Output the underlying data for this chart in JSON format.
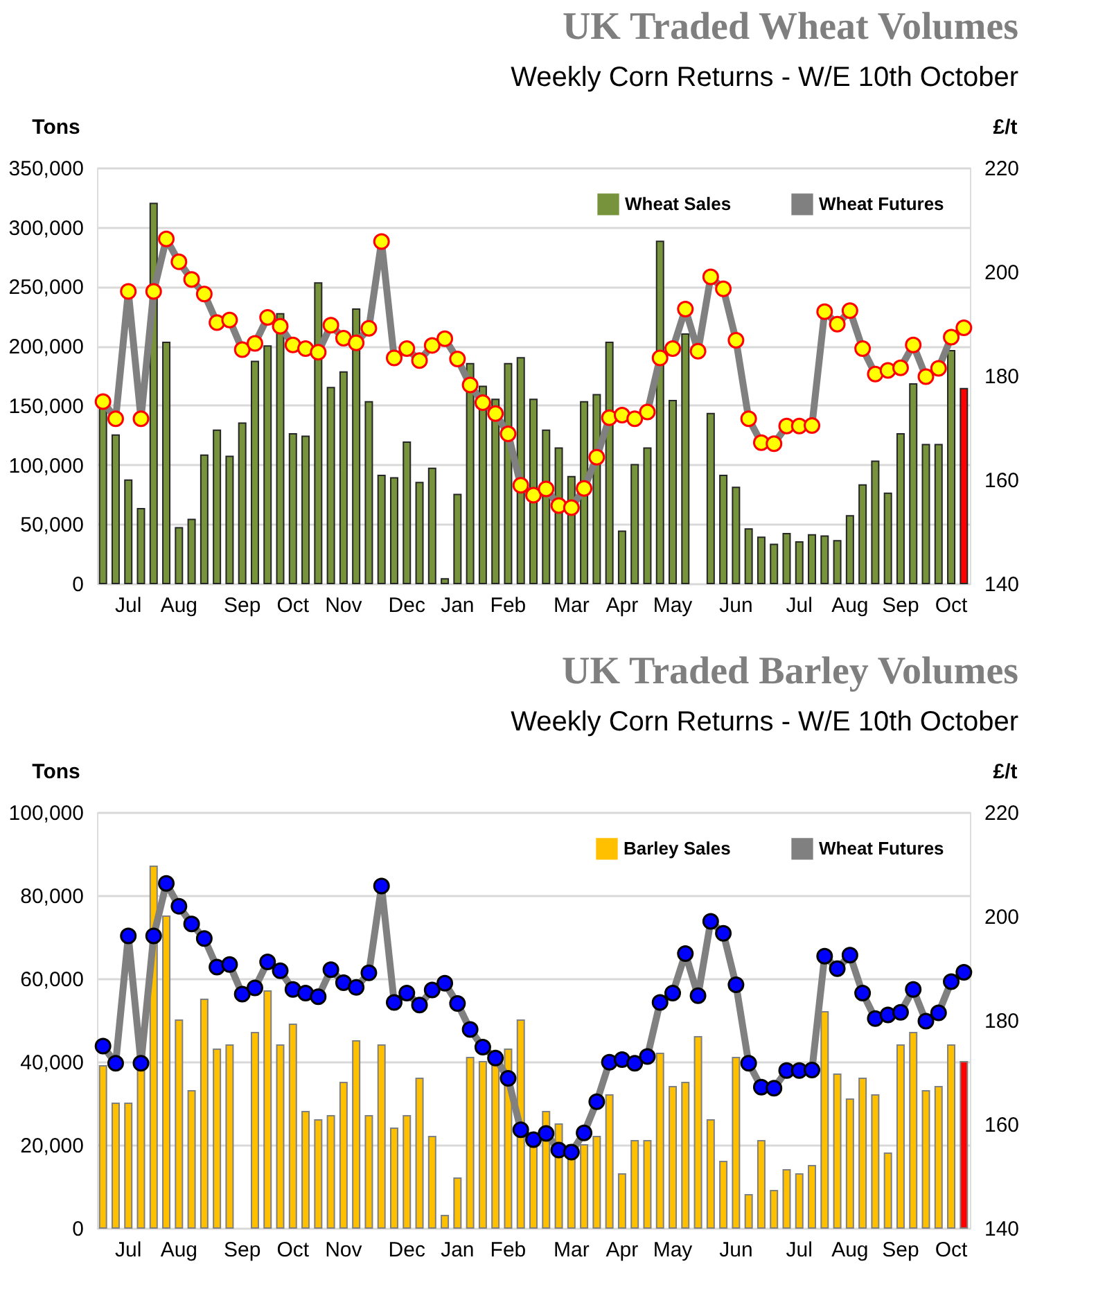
{
  "chart_data": [
    {
      "type": "bar",
      "title": "UK Traded Wheat Volumes",
      "subtitle": "Weekly Corn Returns - W/E 10th October",
      "ylabel": "Tons",
      "y2label": "£/t",
      "categories": [
        null,
        null,
        "Jul",
        null,
        null,
        null,
        "Aug",
        null,
        null,
        null,
        null,
        "Sep",
        null,
        null,
        null,
        "Oct",
        null,
        null,
        null,
        "Nov",
        null,
        null,
        null,
        null,
        "Dec",
        null,
        null,
        null,
        "Jan",
        null,
        null,
        null,
        "Feb",
        null,
        null,
        null,
        null,
        "Mar",
        null,
        null,
        null,
        "Apr",
        null,
        null,
        null,
        "May",
        null,
        null,
        null,
        null,
        "Jun",
        null,
        null,
        null,
        null,
        "Jul",
        null,
        null,
        null,
        "Aug",
        null,
        null,
        null,
        "Sep",
        null,
        null,
        null,
        "Oct",
        null
      ],
      "series": [
        {
          "name": "Wheat Sales",
          "type": "bar",
          "color": "#77933c",
          "colors": [
            "#77933c",
            "#77933c",
            "#77933c",
            "#77933c",
            "#77933c",
            "#77933c",
            "#77933c",
            "#77933c",
            "#77933c",
            "#77933c",
            "#77933c",
            "#77933c",
            "#77933c",
            "#77933c",
            "#77933c",
            "#77933c",
            "#77933c",
            "#77933c",
            "#77933c",
            "#77933c",
            "#77933c",
            "#77933c",
            "#77933c",
            "#77933c",
            "#77933c",
            "#77933c",
            "#77933c",
            "#77933c",
            "#77933c",
            "#77933c",
            "#77933c",
            "#77933c",
            "#77933c",
            "#77933c",
            "#77933c",
            "#77933c",
            "#77933c",
            "#77933c",
            "#77933c",
            "#77933c",
            "#77933c",
            "#77933c",
            "#77933c",
            "#77933c",
            "#77933c",
            "#77933c",
            "#77933c",
            "#77933c",
            "#77933c",
            "#77933c",
            "#77933c",
            "#77933c",
            "#77933c",
            "#77933c",
            "#77933c",
            "#77933c",
            "#77933c",
            "#77933c",
            "#77933c",
            "#77933c",
            "#77933c",
            "#77933c",
            "#77933c",
            "#77933c",
            "#77933c",
            "#77933c",
            "#77933c",
            "#77933c",
            "#ff0000"
          ],
          "values": [
            150000,
            125000,
            87000,
            63000,
            320000,
            203000,
            47000,
            54000,
            108000,
            129000,
            107000,
            135000,
            187000,
            200000,
            227000,
            126000,
            124000,
            253000,
            165000,
            178000,
            231000,
            153000,
            91000,
            89000,
            119000,
            85000,
            97000,
            4000,
            75000,
            185000,
            166000,
            155000,
            185000,
            190000,
            155000,
            129000,
            114000,
            90000,
            153000,
            159000,
            203000,
            44000,
            100000,
            114000,
            288000,
            154000,
            210000,
            null,
            143000,
            91000,
            81000,
            46000,
            39000,
            33000,
            42000,
            35000,
            41000,
            40000,
            36000,
            57000,
            83000,
            103000,
            76000,
            126000,
            168000,
            117000,
            117000,
            196000,
            164000
          ]
        },
        {
          "name": "Wheat Futures",
          "type": "line",
          "axis": "y2",
          "color": "#808080",
          "values": [
            175.0,
            171.7,
            196.2,
            171.7,
            196.2,
            206.3,
            201.9,
            198.5,
            195.7,
            190.2,
            190.7,
            185.0,
            186.2,
            191.2,
            189.5,
            185.9,
            185.2,
            184.5,
            189.7,
            187.2,
            186.3,
            189.1,
            205.8,
            183.4,
            185.2,
            182.9,
            185.8,
            187.1,
            183.2,
            178.2,
            174.8,
            172.7,
            168.8,
            158.9,
            157.0,
            158.2,
            155.0,
            154.6,
            158.3,
            164.3,
            171.9,
            172.4,
            171.7,
            173.0,
            183.4,
            185.2,
            192.8,
            184.7,
            199.0,
            196.7,
            186.8,
            171.7,
            167.1,
            166.9,
            170.3,
            170.3,
            170.4,
            192.3,
            189.9,
            192.5,
            185.2,
            180.3,
            181.0,
            181.5,
            185.9,
            179.8,
            181.4,
            187.4,
            189.2
          ]
        }
      ],
      "ylim": [
        0,
        350000
      ],
      "yticks": [
        0,
        {
          "value": 50000,
          "label": "50,000"
        },
        {
          "value": 100000,
          "label": "100,000"
        },
        {
          "value": 150000,
          "label": "150,000"
        },
        {
          "value": 200000,
          "label": "200,000"
        },
        {
          "value": 250000,
          "label": "250,000"
        },
        {
          "value": 300000,
          "label": "300,000"
        },
        {
          "value": 350000,
          "label": "350,000"
        }
      ],
      "y2lim": [
        140,
        220
      ],
      "y2ticks": [
        140,
        160,
        180,
        200,
        220
      ],
      "grid": "y",
      "legend": "top right",
      "marker": "circle"
    },
    {
      "type": "bar",
      "title": "UK Traded Barley Volumes",
      "subtitle": "Weekly Corn Returns - W/E 10th October",
      "ylabel": "Tons",
      "y2label": "£/t",
      "categories": [
        null,
        null,
        "Jul",
        null,
        null,
        null,
        "Aug",
        null,
        null,
        null,
        null,
        "Sep",
        null,
        null,
        null,
        "Oct",
        null,
        null,
        null,
        "Nov",
        null,
        null,
        null,
        null,
        "Dec",
        null,
        null,
        null,
        "Jan",
        null,
        null,
        null,
        "Feb",
        null,
        null,
        null,
        null,
        "Mar",
        null,
        null,
        null,
        "Apr",
        null,
        null,
        null,
        "May",
        null,
        null,
        null,
        null,
        "Jun",
        null,
        null,
        null,
        null,
        "Jul",
        null,
        null,
        null,
        "Aug",
        null,
        null,
        null,
        "Sep",
        null,
        null,
        null,
        "Oct",
        null
      ],
      "series": [
        {
          "name": "Barley Sales",
          "type": "bar",
          "color": "#ffc000",
          "colors": [
            "#ffc000",
            "#ffc000",
            "#ffc000",
            "#ffc000",
            "#ffc000",
            "#ffc000",
            "#ffc000",
            "#ffc000",
            "#ffc000",
            "#ffc000",
            "#ffc000",
            "#ffc000",
            "#ffc000",
            "#ffc000",
            "#ffc000",
            "#ffc000",
            "#ffc000",
            "#ffc000",
            "#ffc000",
            "#ffc000",
            "#ffc000",
            "#ffc000",
            "#ffc000",
            "#ffc000",
            "#ffc000",
            "#ffc000",
            "#ffc000",
            "#ffc000",
            "#ffc000",
            "#ffc000",
            "#ffc000",
            "#ffc000",
            "#ffc000",
            "#ffc000",
            "#ffc000",
            "#ffc000",
            "#ffc000",
            "#ffc000",
            "#ffc000",
            "#ffc000",
            "#ffc000",
            "#ffc000",
            "#ffc000",
            "#ffc000",
            "#ffc000",
            "#ffc000",
            "#ffc000",
            "#ffc000",
            "#ffc000",
            "#ffc000",
            "#ffc000",
            "#ffc000",
            "#ffc000",
            "#ffc000",
            "#ffc000",
            "#ffc000",
            "#ffc000",
            "#ffc000",
            "#ffc000",
            "#ffc000",
            "#ffc000",
            "#ffc000",
            "#ffc000",
            "#ffc000",
            "#ffc000",
            "#ffc000",
            "#ffc000",
            "#ffc000",
            "#ff0000"
          ],
          "values": [
            39000,
            30000,
            30000,
            42000,
            87000,
            75000,
            50000,
            33000,
            55000,
            43000,
            44000,
            null,
            47000,
            57000,
            44000,
            49000,
            28000,
            26000,
            27000,
            35000,
            45000,
            27000,
            44000,
            24000,
            27000,
            36000,
            22000,
            3000,
            12000,
            41000,
            40000,
            40000,
            43000,
            50000,
            20000,
            28000,
            25000,
            20000,
            20000,
            22000,
            32000,
            13000,
            21000,
            21000,
            42000,
            34000,
            35000,
            46000,
            26000,
            16000,
            41000,
            8000,
            21000,
            9000,
            14000,
            13000,
            15000,
            52000,
            37000,
            31000,
            36000,
            32000,
            18000,
            44000,
            47000,
            33000,
            34000,
            44000,
            40000
          ]
        },
        {
          "name": "Wheat Futures",
          "type": "line",
          "axis": "y2",
          "color": "#808080",
          "values": [
            175.0,
            171.7,
            196.2,
            171.7,
            196.2,
            206.3,
            201.9,
            198.5,
            195.7,
            190.2,
            190.7,
            185.0,
            186.2,
            191.2,
            189.5,
            185.9,
            185.2,
            184.5,
            189.7,
            187.2,
            186.3,
            189.1,
            205.8,
            183.4,
            185.2,
            182.9,
            185.8,
            187.1,
            183.2,
            178.2,
            174.8,
            172.7,
            168.8,
            158.9,
            157.0,
            158.2,
            155.0,
            154.6,
            158.3,
            164.3,
            171.9,
            172.4,
            171.7,
            173.0,
            183.4,
            185.2,
            192.8,
            184.7,
            199.0,
            196.7,
            186.8,
            171.7,
            167.1,
            166.9,
            170.3,
            170.3,
            170.4,
            192.3,
            189.9,
            192.5,
            185.2,
            180.3,
            181.0,
            181.5,
            185.9,
            179.8,
            181.4,
            187.4,
            189.2
          ]
        }
      ],
      "ylim": [
        0,
        100000
      ],
      "yticks": [
        0,
        {
          "value": 20000,
          "label": "20,000"
        },
        {
          "value": 40000,
          "label": "40,000"
        },
        {
          "value": 60000,
          "label": "60,000"
        },
        {
          "value": 80000,
          "label": "80,000"
        },
        {
          "value": 100000,
          "label": "100,000"
        }
      ],
      "y2lim": [
        140,
        220
      ],
      "y2ticks": [
        140,
        160,
        180,
        200,
        220
      ],
      "grid": "y",
      "legend": "top right",
      "marker": "circle"
    }
  ]
}
